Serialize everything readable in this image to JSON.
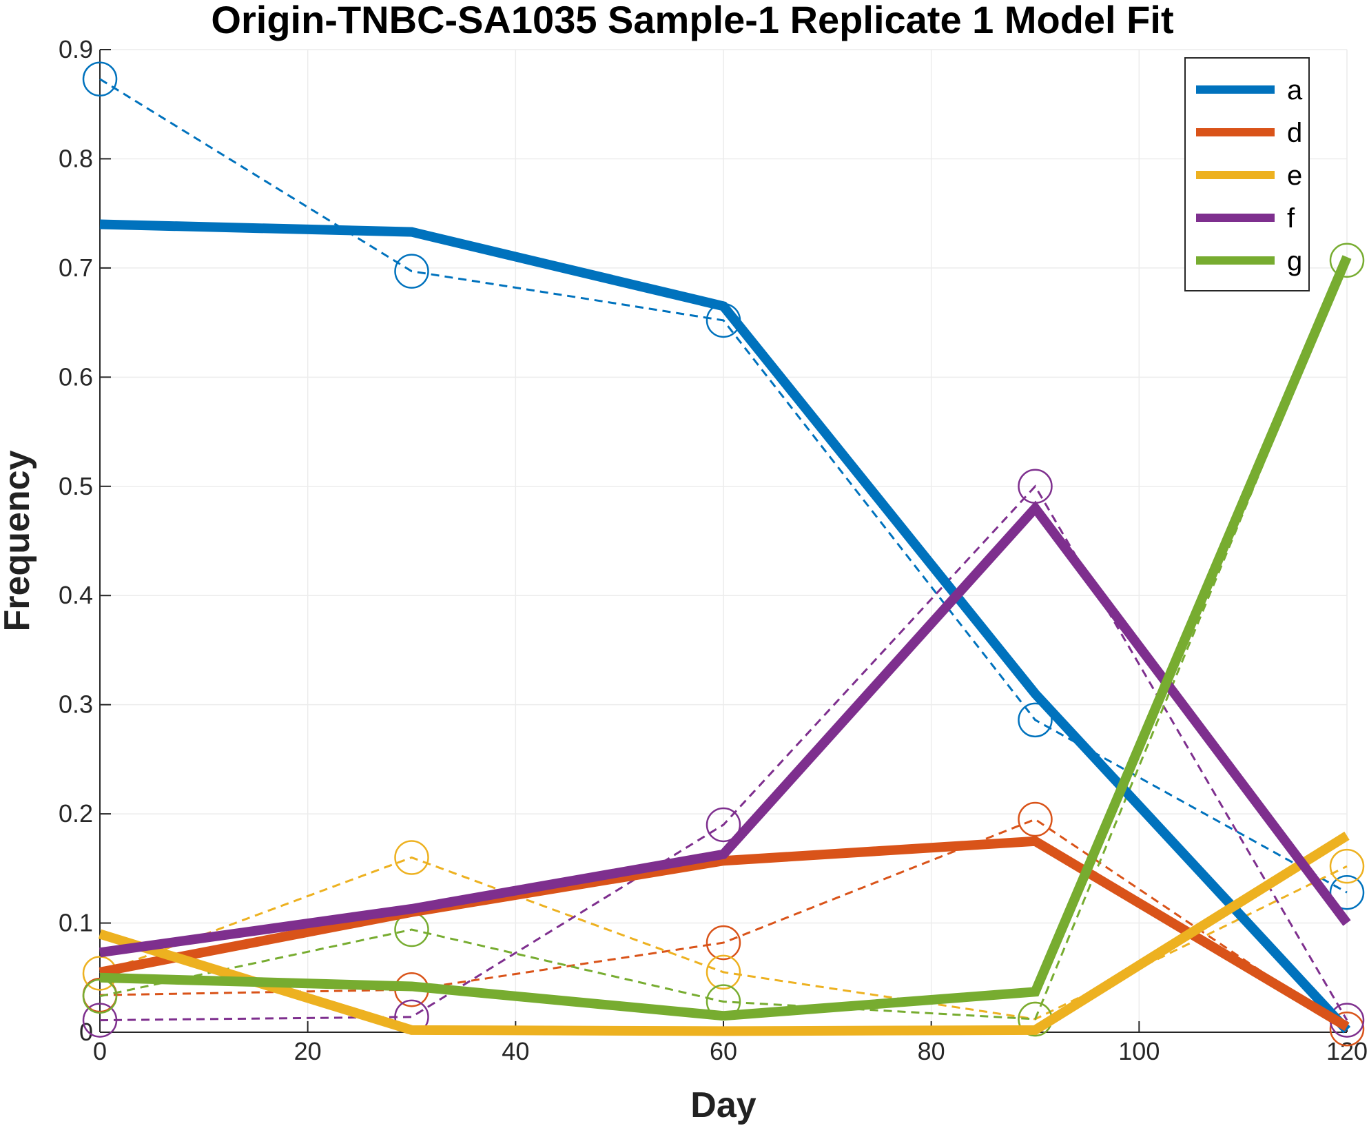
{
  "chart_data": {
    "type": "line",
    "title": "Origin-TNBC-SA1035 Sample-1 Replicate 1 Model Fit",
    "xlabel": "Day",
    "ylabel": "Frequency",
    "xlim": [
      0,
      120
    ],
    "ylim": [
      0,
      0.9
    ],
    "xticks": [
      0,
      20,
      40,
      60,
      80,
      100,
      120
    ],
    "yticks": [
      0,
      0.1,
      0.2,
      0.3,
      0.4,
      0.5,
      0.6,
      0.7,
      0.8,
      0.9
    ],
    "xtick_labels": [
      "0",
      "20",
      "40",
      "60",
      "80",
      "100",
      "120"
    ],
    "ytick_labels": [
      "0",
      "0.1",
      "0.2",
      "0.3",
      "0.4",
      "0.5",
      "0.6",
      "0.7",
      "0.8",
      "0.9"
    ],
    "grid": true,
    "legend_position": "top-right",
    "x": [
      0,
      30,
      60,
      90,
      120
    ],
    "series": [
      {
        "name": "a",
        "color": "#0072BD",
        "model": [
          0.74,
          0.733,
          0.665,
          0.31,
          0.002
        ],
        "observed": [
          0.873,
          0.697,
          0.652,
          0.286,
          0.128
        ]
      },
      {
        "name": "d",
        "color": "#D95319",
        "model": [
          0.055,
          0.11,
          0.157,
          0.175,
          0.005
        ],
        "observed": [
          0.034,
          0.039,
          0.082,
          0.195,
          0.003
        ]
      },
      {
        "name": "e",
        "color": "#EDB120",
        "model": [
          0.09,
          0.002,
          0.001,
          0.002,
          0.18
        ],
        "observed": [
          0.054,
          0.16,
          0.055,
          0.012,
          0.152
        ]
      },
      {
        "name": "f",
        "color": "#7E2F8E",
        "model": [
          0.073,
          0.113,
          0.163,
          0.48,
          0.1
        ],
        "observed": [
          0.011,
          0.014,
          0.19,
          0.5,
          0.011
        ]
      },
      {
        "name": "g",
        "color": "#77AC30",
        "model": [
          0.05,
          0.042,
          0.015,
          0.037,
          0.71
        ],
        "observed": [
          0.033,
          0.094,
          0.028,
          0.012,
          0.707
        ]
      }
    ]
  }
}
